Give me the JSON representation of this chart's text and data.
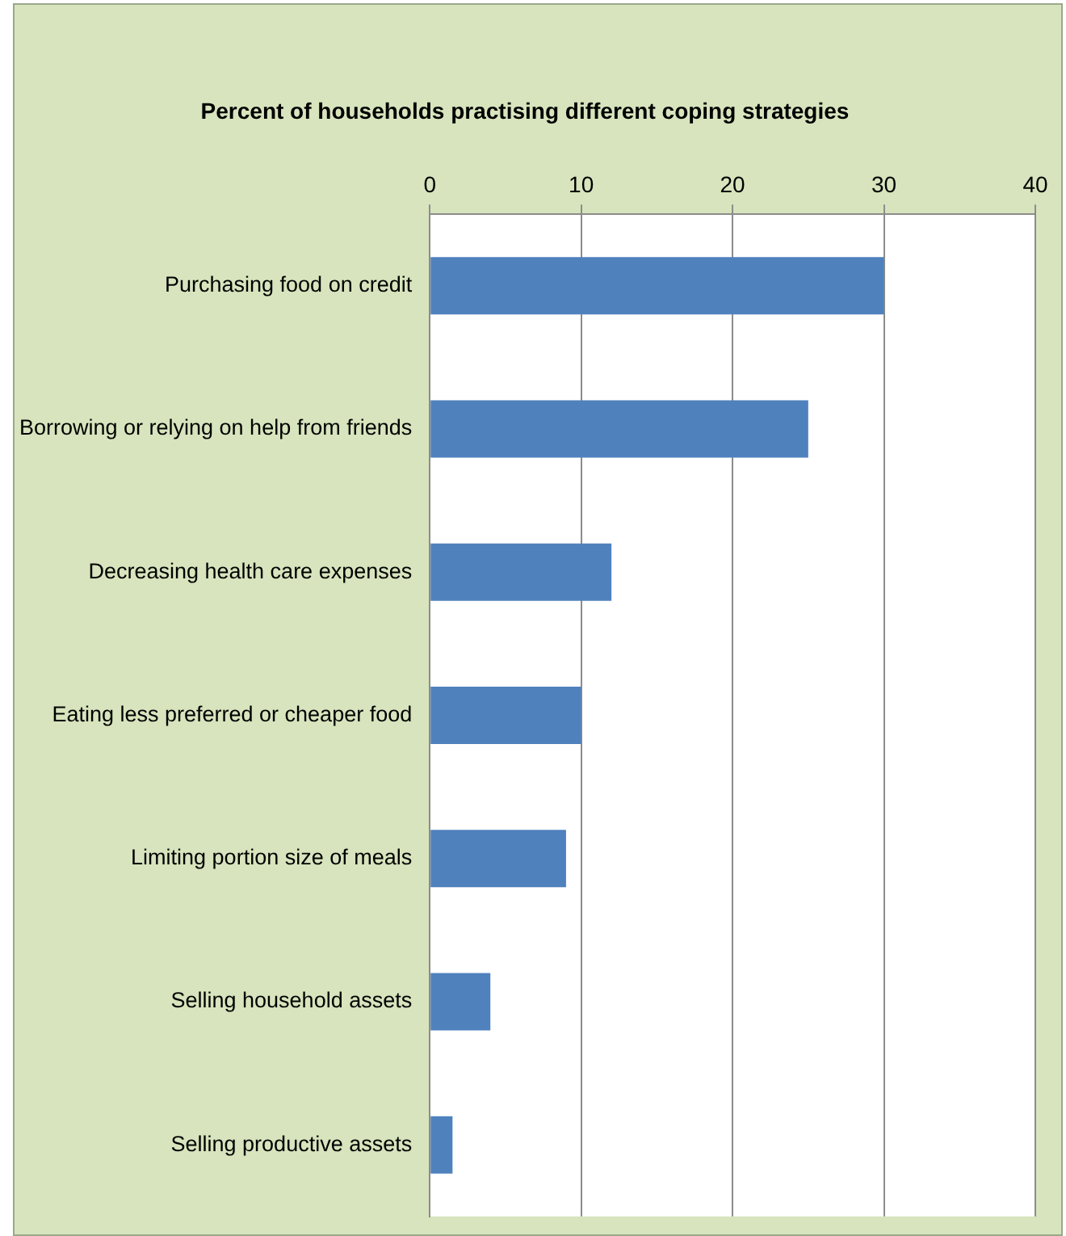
{
  "chart_data": {
    "type": "bar",
    "orientation": "horizontal",
    "title": "Percent of households practising different coping strategies",
    "categories": [
      "Purchasing food on credit",
      "Borrowing or relying on help from friends",
      "Decreasing health care expenses",
      "Eating less preferred or cheaper food",
      "Limiting portion size of meals",
      "Selling household assets",
      "Selling productive assets"
    ],
    "values": [
      30,
      25,
      12,
      10,
      9,
      4,
      1.5
    ],
    "color": "#4f81bd",
    "xlim": [
      0,
      40
    ],
    "xticks": [
      0,
      10,
      20,
      30,
      40
    ],
    "grid": "x",
    "legend": false
  }
}
